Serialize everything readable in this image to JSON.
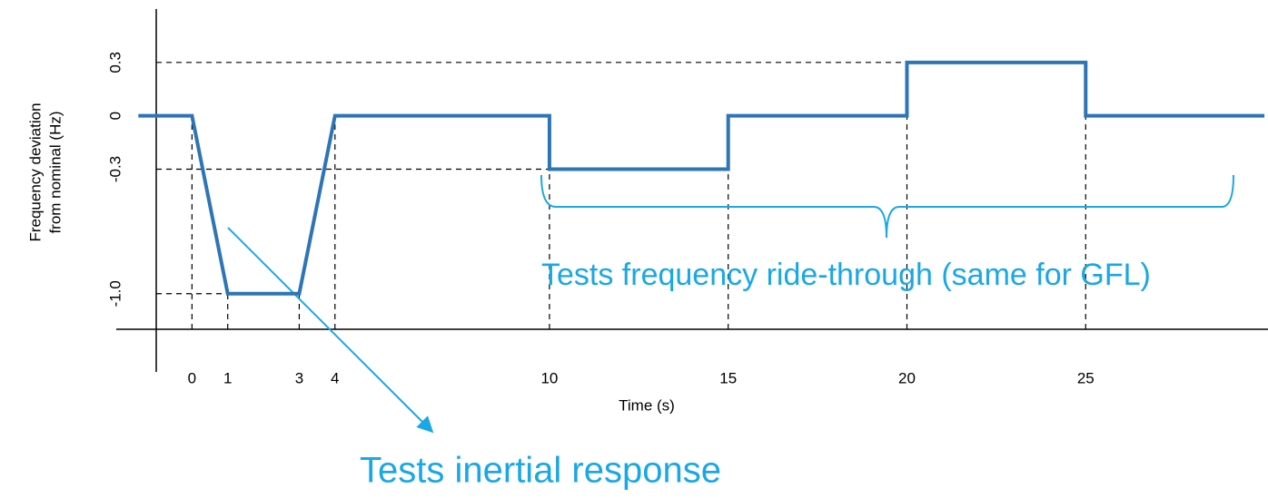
{
  "chart_data": {
    "type": "line",
    "xlabel": "Time (s)",
    "ylabel": [
      "Frequency deviation",
      "from nominal (Hz)"
    ],
    "x": [
      -1.5,
      0,
      1,
      3,
      4,
      10,
      10,
      15,
      15,
      20,
      20,
      25,
      25,
      30
    ],
    "series": [
      {
        "name": "Frequency deviation",
        "color": "#2e75b6",
        "values": [
          0,
          0,
          -1,
          -1,
          0,
          0,
          -0.3,
          -0.3,
          0,
          0,
          0.3,
          0.3,
          0,
          0
        ]
      }
    ],
    "xlim": [
      -1,
      30.1
    ],
    "ylim": [
      -1.2,
      0.6
    ],
    "xticks": [
      0,
      1,
      3,
      4,
      10,
      15,
      20,
      25
    ],
    "yticks": [
      0.3,
      0,
      -0.3,
      {
        "value": -1,
        "label": "-1.0"
      }
    ],
    "annotations": [
      "Tests frequency ride-through (same for GFL)",
      "Tests inertial response"
    ]
  }
}
